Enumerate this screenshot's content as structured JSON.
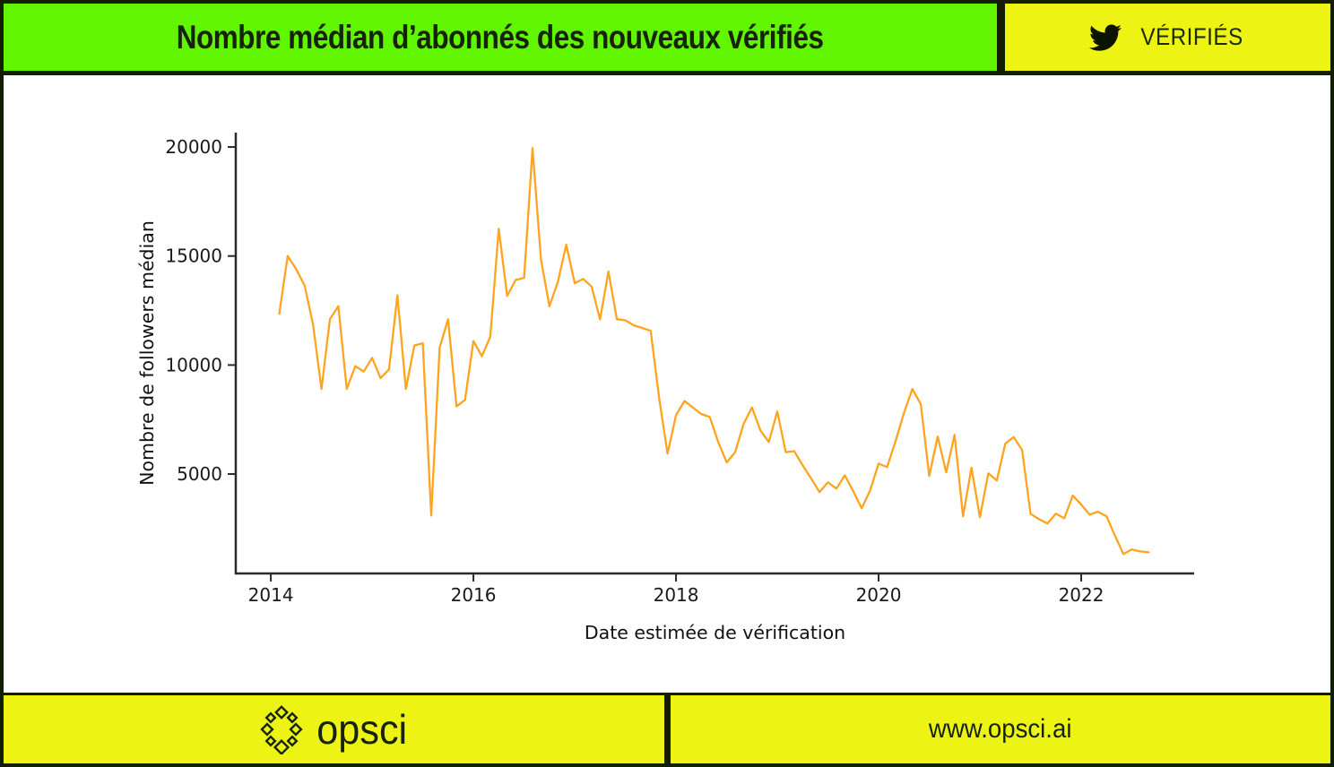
{
  "header": {
    "title": "Nombre médian d’abonnés des nouveaux vérifiés",
    "badge_label": "VÉRIFIÉS",
    "badge_icon": "twitter-bird-icon"
  },
  "footer": {
    "logo_icon": "opsci-logo-icon",
    "logo_text": "opsci",
    "website": "www.opsci.ai"
  },
  "colors": {
    "green": "#61f501",
    "yellow": "#edf414",
    "dark": "#131f04",
    "line_orange": "#ffa41e",
    "axis": "#2a2a2a",
    "background": "#ffffff"
  },
  "chart_data": {
    "type": "line",
    "title": "",
    "xlabel": "Date estimée de vérification",
    "ylabel": "Nombre de followers médian",
    "legend": null,
    "grid": false,
    "line_color": "#ffa41e",
    "x_ticks": [
      2014,
      2016,
      2018,
      2020,
      2022
    ],
    "y_ticks": [
      5000,
      10000,
      15000,
      20000
    ],
    "x_range": [
      2013.654,
      2023.115
    ],
    "y_range": [
      440,
      20660
    ],
    "x": [
      "2014-02",
      "2014-03",
      "2014-04",
      "2014-05",
      "2014-06",
      "2014-07",
      "2014-08",
      "2014-09",
      "2014-10",
      "2014-11",
      "2014-12",
      "2015-01",
      "2015-02",
      "2015-03",
      "2015-04",
      "2015-05",
      "2015-06",
      "2015-07",
      "2015-08",
      "2015-09",
      "2015-10",
      "2015-11",
      "2015-12",
      "2016-01",
      "2016-02",
      "2016-03",
      "2016-04",
      "2016-05",
      "2016-06",
      "2016-07",
      "2016-08",
      "2016-09",
      "2016-10",
      "2016-11",
      "2016-12",
      "2017-01",
      "2017-02",
      "2017-03",
      "2017-04",
      "2017-05",
      "2017-06",
      "2017-07",
      "2017-08",
      "2017-09",
      "2017-10",
      "2017-11",
      "2017-12",
      "2018-01",
      "2018-02",
      "2018-03",
      "2018-04",
      "2018-05",
      "2018-06",
      "2018-07",
      "2018-08",
      "2018-09",
      "2018-10",
      "2018-11",
      "2018-12",
      "2019-01",
      "2019-02",
      "2019-03",
      "2019-04",
      "2019-05",
      "2019-06",
      "2019-07",
      "2019-08",
      "2019-09",
      "2019-10",
      "2019-11",
      "2019-12",
      "2020-01",
      "2020-02",
      "2020-03",
      "2020-04",
      "2020-05",
      "2020-06",
      "2020-07",
      "2020-08",
      "2020-09",
      "2020-10",
      "2020-11",
      "2020-12",
      "2021-01",
      "2021-02",
      "2021-03",
      "2021-04",
      "2021-05",
      "2021-06",
      "2021-07",
      "2021-08",
      "2021-09",
      "2021-10",
      "2021-11",
      "2021-12",
      "2022-01",
      "2022-02",
      "2022-03",
      "2022-04",
      "2022-05",
      "2022-06",
      "2022-07",
      "2022-08",
      "2022-09"
    ],
    "values": [
      12350,
      15000,
      14400,
      13650,
      11850,
      8900,
      12100,
      12700,
      8900,
      9950,
      9700,
      10330,
      9400,
      9800,
      13200,
      8900,
      10900,
      11000,
      3100,
      10800,
      12100,
      8100,
      8400,
      11100,
      10400,
      11300,
      16250,
      13170,
      13900,
      14000,
      19950,
      14850,
      12700,
      13800,
      15520,
      13750,
      13950,
      13600,
      12100,
      14290,
      12100,
      12050,
      11820,
      11700,
      11570,
      8500,
      5940,
      7700,
      8350,
      8050,
      7750,
      7620,
      6470,
      5530,
      6000,
      7300,
      8050,
      7000,
      6470,
      7870,
      6000,
      6050,
      5400,
      4800,
      4170,
      4620,
      4330,
      4940,
      4210,
      3430,
      4250,
      5480,
      5320,
      6500,
      7800,
      8900,
      8200,
      4910,
      6720,
      5080,
      6800,
      3060,
      5290,
      3020,
      5030,
      4700,
      6390,
      6700,
      6100,
      3180,
      2930,
      2730,
      3180,
      2970,
      4010,
      3600,
      3140,
      3270,
      3060,
      2170,
      1330,
      1540,
      1450,
      1410
    ]
  }
}
